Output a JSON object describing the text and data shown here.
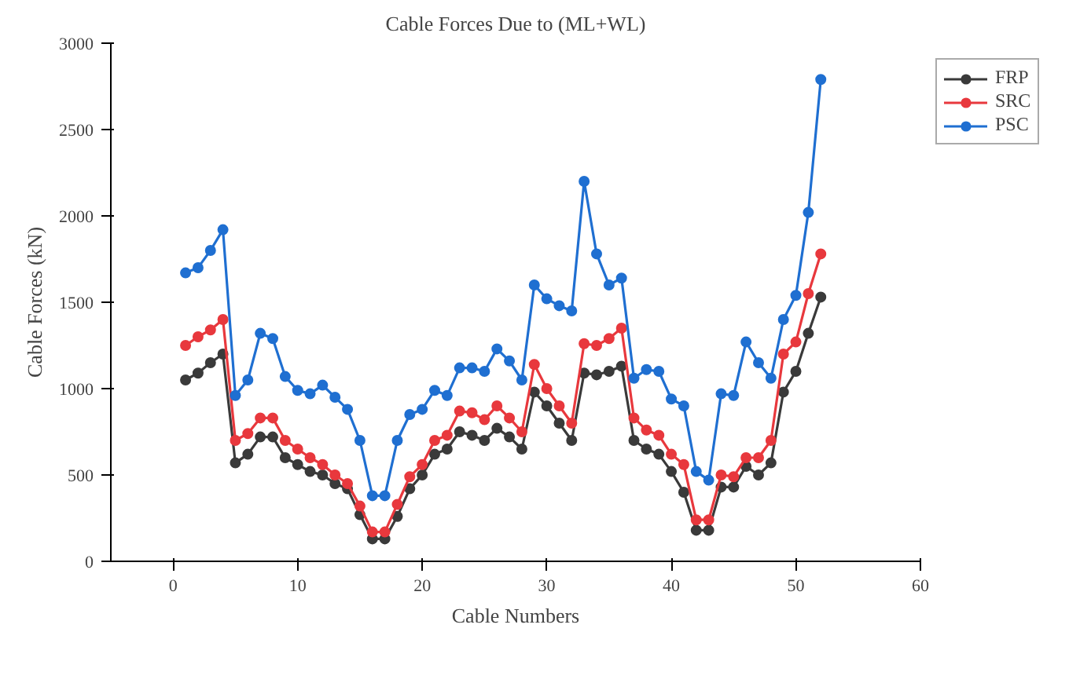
{
  "chart_data": {
    "type": "line",
    "title": "Cable Forces Due to (ML+WL)",
    "xlabel": "Cable Numbers",
    "ylabel": "Cable Forces (kN)",
    "x": [
      1,
      2,
      3,
      4,
      5,
      6,
      7,
      8,
      9,
      10,
      11,
      12,
      13,
      14,
      15,
      16,
      17,
      18,
      19,
      20,
      21,
      22,
      23,
      24,
      25,
      26,
      27,
      28,
      29,
      30,
      31,
      32,
      33,
      34,
      35,
      36,
      37,
      38,
      39,
      40,
      41,
      42,
      43,
      44,
      45,
      46,
      47,
      48,
      49,
      50,
      51,
      52
    ],
    "series": [
      {
        "name": "FRP",
        "color": "#3a3a3a",
        "values": [
          1050,
          1090,
          1150,
          1200,
          570,
          620,
          720,
          720,
          600,
          560,
          520,
          500,
          450,
          420,
          270,
          130,
          130,
          260,
          420,
          500,
          620,
          650,
          750,
          730,
          700,
          770,
          720,
          650,
          980,
          900,
          800,
          700,
          1090,
          1080,
          1100,
          1130,
          700,
          650,
          620,
          520,
          400,
          180,
          180,
          430,
          430,
          550,
          500,
          570,
          980,
          1100,
          1320,
          1530
        ]
      },
      {
        "name": "SRC",
        "color": "#e8383d",
        "values": [
          1250,
          1300,
          1340,
          1400,
          700,
          740,
          830,
          830,
          700,
          650,
          600,
          560,
          500,
          450,
          320,
          170,
          170,
          330,
          490,
          560,
          700,
          730,
          870,
          860,
          820,
          900,
          830,
          750,
          1140,
          1000,
          900,
          800,
          1260,
          1250,
          1290,
          1350,
          830,
          760,
          730,
          620,
          560,
          240,
          240,
          500,
          490,
          600,
          600,
          700,
          1200,
          1270,
          1550,
          1780
        ]
      },
      {
        "name": "PSC",
        "color": "#1f6fd1",
        "values": [
          1670,
          1700,
          1800,
          1920,
          960,
          1050,
          1320,
          1290,
          1070,
          990,
          970,
          1020,
          950,
          880,
          700,
          380,
          380,
          700,
          850,
          880,
          990,
          960,
          1120,
          1120,
          1100,
          1230,
          1160,
          1050,
          1600,
          1520,
          1480,
          1450,
          2200,
          1780,
          1600,
          1640,
          1060,
          1110,
          1100,
          940,
          900,
          520,
          470,
          970,
          960,
          1270,
          1150,
          1060,
          1400,
          1540,
          2020,
          2790
        ]
      }
    ],
    "xlim": [
      -5,
      60
    ],
    "xticks": [
      0,
      10,
      20,
      30,
      40,
      50,
      60
    ],
    "ylim": [
      0,
      3000
    ],
    "yticks": [
      0,
      500,
      1000,
      1500,
      2000,
      2500,
      3000
    ],
    "grid": false,
    "legend": "top right",
    "marker": "circle",
    "line_style": "solid"
  }
}
